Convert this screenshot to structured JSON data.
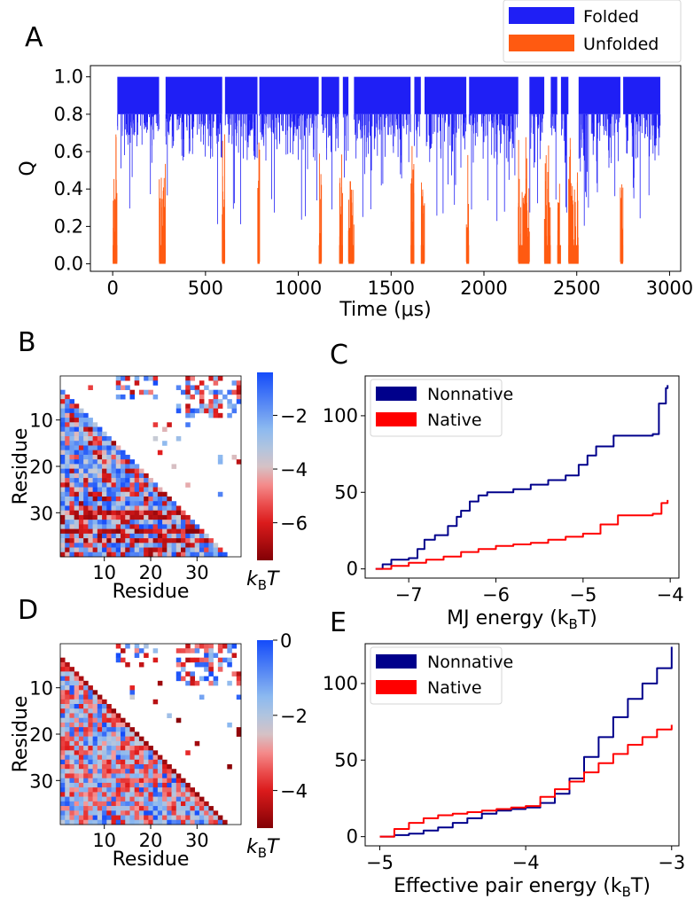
{
  "chart_data": [
    {
      "panel": "A",
      "type": "line",
      "title": "",
      "xlabel": "Time (μs)",
      "ylabel": "Q",
      "xlim": [
        -120,
        3060
      ],
      "ylim": [
        -0.04,
        1.06
      ],
      "xticks": [
        0,
        500,
        1000,
        1500,
        2000,
        2500,
        3000
      ],
      "yticks": [
        0.0,
        0.2,
        0.4,
        0.6,
        0.8,
        1.0
      ],
      "ytick_labels": [
        "0.0",
        "0.2",
        "0.4",
        "0.6",
        "0.8",
        "1.0"
      ],
      "legend": "top-right, outside",
      "series": [
        {
          "name": "Folded",
          "color": "#1f1ff5",
          "intervals": [
            [
              25,
              250
            ],
            [
              285,
              590
            ],
            [
              605,
              780
            ],
            [
              790,
              1110
            ],
            [
              1125,
              1220
            ],
            [
              1240,
              1270
            ],
            [
              1300,
              1605
            ],
            [
              1625,
              1660
            ],
            [
              1680,
              1905
            ],
            [
              1920,
              2185
            ],
            [
              2245,
              2325
            ],
            [
              2360,
              2395
            ],
            [
              2415,
              2455
            ],
            [
              2510,
              2735
            ],
            [
              2750,
              2950
            ]
          ]
        },
        {
          "name": "Unfolded",
          "color": "#ff5a11",
          "intervals": [
            [
              0,
              25
            ],
            [
              250,
              285
            ],
            [
              590,
              605
            ],
            [
              780,
              790
            ],
            [
              1110,
              1125
            ],
            [
              1220,
              1240
            ],
            [
              1270,
              1300
            ],
            [
              1605,
              1625
            ],
            [
              1660,
              1680
            ],
            [
              1905,
              1920
            ],
            [
              2185,
              2245
            ],
            [
              2325,
              2360
            ],
            [
              2395,
              2415
            ],
            [
              2455,
              2510
            ],
            [
              2735,
              2750
            ]
          ]
        }
      ]
    },
    {
      "panel": "B",
      "type": "heatmap",
      "xlabel": "Residue",
      "ylabel": "Residue",
      "xticks": [
        10,
        20,
        30
      ],
      "yticks": [
        10,
        20,
        30
      ],
      "n_residues": 39,
      "colorbar": {
        "ticks": [
          -2,
          -4,
          -6
        ],
        "tick_labels": [
          "−2",
          "−4",
          "−6"
        ],
        "min": -7.4,
        "max": -0.4,
        "unit": "kBT",
        "label_main": "k",
        "label_sub": "B",
        "label_tail": "T"
      }
    },
    {
      "panel": "C",
      "type": "line",
      "xlabel_main": "MJ energy (k",
      "xlabel_sub": "B",
      "xlabel_tail": "T)",
      "ylabel": "",
      "xlim": [
        -7.5,
        -3.9
      ],
      "ylim": [
        -6,
        126
      ],
      "xticks": [
        -7,
        -6,
        -5,
        -4
      ],
      "xtick_labels": [
        "−7",
        "−6",
        "−5",
        "−4"
      ],
      "yticks": [
        0,
        50,
        100
      ],
      "legend": "top-left",
      "series": [
        {
          "name": "Nonnative",
          "color": "#00008b",
          "x": [
            -7.38,
            -7.3,
            -7.2,
            -7.0,
            -6.9,
            -6.82,
            -6.7,
            -6.55,
            -6.45,
            -6.4,
            -6.3,
            -6.2,
            -6.1,
            -6.0,
            -5.8,
            -5.6,
            -5.4,
            -5.2,
            -5.05,
            -4.95,
            -4.85,
            -4.65,
            -4.4,
            -4.2,
            -4.13,
            -4.05,
            -4.03
          ],
          "values": [
            0,
            3,
            6,
            7,
            13,
            19,
            22,
            28,
            34,
            38,
            44,
            48,
            50,
            50,
            52,
            55,
            58,
            61,
            68,
            74,
            80,
            87,
            87,
            88,
            108,
            118,
            120
          ]
        },
        {
          "name": "Native",
          "color": "#ff0000",
          "x": [
            -7.38,
            -7.2,
            -7.0,
            -6.8,
            -6.6,
            -6.4,
            -6.2,
            -6.0,
            -5.8,
            -5.6,
            -5.4,
            -5.2,
            -5.0,
            -4.8,
            -4.6,
            -4.4,
            -4.2,
            -4.1,
            -4.03
          ],
          "values": [
            0,
            2,
            4,
            6,
            8,
            11,
            13,
            15,
            16,
            17,
            19,
            21,
            23,
            29,
            35,
            35,
            36,
            43,
            45
          ]
        }
      ]
    },
    {
      "panel": "D",
      "type": "heatmap",
      "xlabel": "Residue",
      "ylabel": "Residue",
      "xticks": [
        10,
        20,
        30
      ],
      "yticks": [
        10,
        20,
        30
      ],
      "n_residues": 39,
      "colorbar": {
        "ticks": [
          0,
          -2,
          -4
        ],
        "tick_labels": [
          "0",
          "−2",
          "−4"
        ],
        "min": -5.0,
        "max": 0,
        "unit": "kBT",
        "label_main": "k",
        "label_sub": "B",
        "label_tail": "T"
      }
    },
    {
      "panel": "E",
      "type": "line",
      "xlabel_main": "Effective pair energy (k",
      "xlabel_sub": "B",
      "xlabel_tail": "T)",
      "ylabel": "",
      "xlim": [
        -5.1,
        -2.95
      ],
      "ylim": [
        -6,
        126
      ],
      "xticks": [
        -5,
        -4,
        -3
      ],
      "xtick_labels": [
        "−5",
        "−4",
        "−3"
      ],
      "yticks": [
        0,
        50,
        100
      ],
      "legend": "top-left",
      "series": [
        {
          "name": "Nonnative",
          "color": "#00008b",
          "x": [
            -5.0,
            -4.9,
            -4.8,
            -4.7,
            -4.6,
            -4.5,
            -4.4,
            -4.3,
            -4.2,
            -4.1,
            -4.0,
            -3.9,
            -3.8,
            -3.7,
            -3.6,
            -3.5,
            -3.4,
            -3.3,
            -3.2,
            -3.1,
            -3.0
          ],
          "values": [
            0,
            1,
            2,
            4,
            6,
            9,
            12,
            15,
            17,
            18,
            19,
            22,
            28,
            38,
            52,
            65,
            78,
            90,
            100,
            110,
            124
          ]
        },
        {
          "name": "Native",
          "color": "#ff0000",
          "x": [
            -5.0,
            -4.9,
            -4.8,
            -4.7,
            -4.6,
            -4.5,
            -4.4,
            -4.3,
            -4.2,
            -4.1,
            -4.0,
            -3.9,
            -3.8,
            -3.7,
            -3.6,
            -3.5,
            -3.4,
            -3.3,
            -3.2,
            -3.1,
            -3.0
          ],
          "values": [
            0,
            5,
            9,
            12,
            14,
            15,
            16,
            17,
            18,
            19,
            20,
            26,
            31,
            36,
            42,
            48,
            54,
            60,
            65,
            70,
            73
          ]
        }
      ]
    }
  ]
}
